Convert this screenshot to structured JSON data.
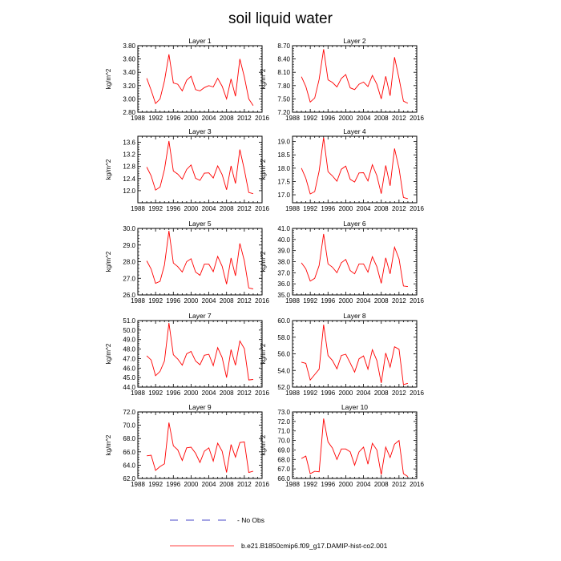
{
  "title": "soil liquid water",
  "legend": {
    "items": [
      {
        "label": "- No Obs",
        "style": "dashed",
        "color": "#4a4ac8"
      },
      {
        "label": "b.e21.B1850cmip6.f09_g17.DAMIP-hist-co2.001",
        "style": "solid",
        "color": "#ff0000"
      }
    ]
  },
  "chart_data": [
    {
      "type": "line",
      "title": "Layer 1",
      "ylabel": "kg/m^2",
      "xlim": [
        1988,
        2016
      ],
      "xticks": [
        1988,
        1992,
        1996,
        2000,
        2004,
        2008,
        2012,
        2016
      ],
      "ylim": [
        2.8,
        3.8
      ],
      "yticks": [
        "2.80",
        "3.00",
        "3.20",
        "3.40",
        "3.60",
        "3.80"
      ],
      "color": "#ff0000",
      "x": [
        1990,
        1991,
        1992,
        1993,
        1994,
        1995,
        1996,
        1997,
        1998,
        1999,
        2000,
        2001,
        2002,
        2003,
        2004,
        2005,
        2006,
        2007,
        2008,
        2009,
        2010,
        2011,
        2012,
        2013,
        2014
      ],
      "y": [
        3.31,
        3.13,
        2.93,
        3.0,
        3.27,
        3.67,
        3.24,
        3.22,
        3.12,
        3.28,
        3.34,
        3.14,
        3.12,
        3.17,
        3.2,
        3.18,
        3.31,
        3.19,
        3.0,
        3.3,
        3.04,
        3.6,
        3.33,
        3.0,
        2.9
      ]
    },
    {
      "type": "line",
      "title": "Layer 2",
      "ylabel": "kg/m^2",
      "xlim": [
        1988,
        2016
      ],
      "xticks": [
        1988,
        1992,
        1996,
        2000,
        2004,
        2008,
        2012,
        2016
      ],
      "ylim": [
        7.2,
        8.7
      ],
      "yticks": [
        "7.20",
        "7.50",
        "7.80",
        "8.10",
        "8.40",
        "8.70"
      ],
      "color": "#ff0000",
      "x": [
        1990,
        1991,
        1992,
        1993,
        1994,
        1995,
        1996,
        1997,
        1998,
        1999,
        2000,
        2001,
        2002,
        2003,
        2004,
        2005,
        2006,
        2007,
        2008,
        2009,
        2010,
        2011,
        2012,
        2013,
        2014
      ],
      "y": [
        8.0,
        7.78,
        7.43,
        7.52,
        7.94,
        8.62,
        7.93,
        7.87,
        7.77,
        7.96,
        8.05,
        7.75,
        7.71,
        7.83,
        7.88,
        7.78,
        8.03,
        7.83,
        7.5,
        8.01,
        7.57,
        8.44,
        7.96,
        7.45,
        7.4
      ]
    },
    {
      "type": "line",
      "title": "Layer 3",
      "ylabel": "kg/m^2",
      "xlim": [
        1988,
        2016
      ],
      "xticks": [
        1988,
        1992,
        1996,
        2000,
        2004,
        2008,
        2012,
        2016
      ],
      "ylim": [
        11.6,
        13.8
      ],
      "yticks": [
        "12.0",
        "12.4",
        "12.8",
        "13.2",
        "13.6"
      ],
      "color": "#ff0000",
      "x": [
        1990,
        1991,
        1992,
        1993,
        1994,
        1995,
        1996,
        1997,
        1998,
        1999,
        2000,
        2001,
        2002,
        2003,
        2004,
        2005,
        2006,
        2007,
        2008,
        2009,
        2010,
        2011,
        2012,
        2013,
        2014
      ],
      "y": [
        12.78,
        12.49,
        12.02,
        12.12,
        12.7,
        13.64,
        12.65,
        12.55,
        12.38,
        12.7,
        12.85,
        12.41,
        12.34,
        12.58,
        12.59,
        12.42,
        12.82,
        12.53,
        12.03,
        12.82,
        12.24,
        13.36,
        12.69,
        11.94,
        11.9
      ]
    },
    {
      "type": "line",
      "title": "Layer 4",
      "ylabel": "kg/m^2",
      "xlim": [
        1988,
        2016
      ],
      "xticks": [
        1988,
        1992,
        1996,
        2000,
        2004,
        2008,
        2012,
        2016
      ],
      "ylim": [
        16.7,
        19.2
      ],
      "yticks": [
        "17.0",
        "17.5",
        "18.0",
        "18.5",
        "19.0"
      ],
      "color": "#ff0000",
      "x": [
        1990,
        1991,
        1992,
        1993,
        1994,
        1995,
        1996,
        1997,
        1998,
        1999,
        2000,
        2001,
        2002,
        2003,
        2004,
        2005,
        2006,
        2007,
        2008,
        2009,
        2010,
        2011,
        2012,
        2013,
        2014
      ],
      "y": [
        18.0,
        17.62,
        17.03,
        17.12,
        17.89,
        19.15,
        17.87,
        17.71,
        17.51,
        17.96,
        18.08,
        17.58,
        17.48,
        17.82,
        17.83,
        17.52,
        18.13,
        17.72,
        17.04,
        18.1,
        17.34,
        18.74,
        17.99,
        16.9,
        16.85
      ]
    },
    {
      "type": "line",
      "title": "Layer 5",
      "ylabel": "kg/m^2",
      "xlim": [
        1988,
        2016
      ],
      "xticks": [
        1988,
        1992,
        1996,
        2000,
        2004,
        2008,
        2012,
        2016
      ],
      "ylim": [
        26.0,
        30.0
      ],
      "yticks": [
        "26.0",
        "27.0",
        "28.0",
        "29.0",
        "30.0"
      ],
      "color": "#ff0000",
      "x": [
        1990,
        1991,
        1992,
        1993,
        1994,
        1995,
        1996,
        1997,
        1998,
        1999,
        2000,
        2001,
        2002,
        2003,
        2004,
        2005,
        2006,
        2007,
        2008,
        2009,
        2010,
        2011,
        2012,
        2013,
        2014
      ],
      "y": [
        28.05,
        27.55,
        26.7,
        26.82,
        27.8,
        29.85,
        27.92,
        27.7,
        27.38,
        28.0,
        28.18,
        27.38,
        27.18,
        27.85,
        27.85,
        27.4,
        28.32,
        27.72,
        26.65,
        28.22,
        27.15,
        29.1,
        28.05,
        26.42,
        26.36
      ]
    },
    {
      "type": "line",
      "title": "Layer 6",
      "ylabel": "kg/m^2",
      "xlim": [
        1988,
        2016
      ],
      "xticks": [
        1988,
        1992,
        1996,
        2000,
        2004,
        2008,
        2012,
        2016
      ],
      "ylim": [
        35.0,
        41.0
      ],
      "yticks": [
        "35.0",
        "36.0",
        "37.0",
        "38.0",
        "39.0",
        "40.0",
        "41.0"
      ],
      "color": "#ff0000",
      "x": [
        1990,
        1991,
        1992,
        1993,
        1994,
        1995,
        1996,
        1997,
        1998,
        1999,
        2000,
        2001,
        2002,
        2003,
        2004,
        2005,
        2006,
        2007,
        2008,
        2009,
        2010,
        2011,
        2012,
        2013,
        2014
      ],
      "y": [
        37.9,
        37.35,
        36.25,
        36.5,
        37.65,
        40.5,
        37.8,
        37.5,
        37.0,
        37.9,
        38.2,
        37.2,
        36.9,
        37.8,
        37.8,
        37.05,
        38.45,
        37.55,
        36.05,
        38.35,
        36.9,
        39.3,
        38.25,
        35.8,
        35.75
      ]
    },
    {
      "type": "line",
      "title": "Layer 7",
      "ylabel": "kg/m^2",
      "xlim": [
        1988,
        2016
      ],
      "xticks": [
        1988,
        1992,
        1996,
        2000,
        2004,
        2008,
        2012,
        2016
      ],
      "ylim": [
        44.0,
        51.0
      ],
      "yticks": [
        "44.0",
        "45.0",
        "46.0",
        "47.0",
        "48.0",
        "49.0",
        "50.0",
        "51.0"
      ],
      "color": "#ff0000",
      "x": [
        1990,
        1991,
        1992,
        1993,
        1994,
        1995,
        1996,
        1997,
        1998,
        1999,
        2000,
        2001,
        2002,
        2003,
        2004,
        2005,
        2006,
        2007,
        2008,
        2009,
        2010,
        2011,
        2012,
        2013,
        2014
      ],
      "y": [
        47.3,
        46.85,
        45.2,
        45.65,
        46.75,
        50.75,
        47.4,
        46.95,
        46.3,
        47.5,
        47.75,
        46.75,
        46.35,
        47.35,
        47.45,
        46.25,
        48.15,
        47.1,
        45.0,
        47.95,
        46.3,
        48.85,
        48.05,
        44.75,
        44.8
      ]
    },
    {
      "type": "line",
      "title": "Layer 8",
      "ylabel": "kg/m^2",
      "xlim": [
        1988,
        2016
      ],
      "xticks": [
        1988,
        1992,
        1996,
        2000,
        2004,
        2008,
        2012,
        2016
      ],
      "ylim": [
        52.0,
        60.0
      ],
      "yticks": [
        "52.0",
        "54.0",
        "56.0",
        "58.0",
        "60.0"
      ],
      "color": "#ff0000",
      "x": [
        1990,
        1991,
        1992,
        1993,
        1994,
        1995,
        1996,
        1997,
        1998,
        1999,
        2000,
        2001,
        2002,
        2003,
        2004,
        2005,
        2006,
        2007,
        2008,
        2009,
        2010,
        2011,
        2012,
        2013,
        2014
      ],
      "y": [
        55.0,
        54.85,
        52.85,
        53.5,
        54.15,
        59.5,
        55.8,
        55.2,
        54.2,
        55.8,
        55.95,
        54.9,
        53.8,
        55.4,
        55.75,
        54.15,
        56.5,
        55.2,
        52.5,
        56.1,
        54.4,
        56.85,
        56.55,
        52.3,
        52.45
      ]
    },
    {
      "type": "line",
      "title": "Layer 9",
      "ylabel": "kg/m^2",
      "xlim": [
        1988,
        2016
      ],
      "xticks": [
        1988,
        1992,
        1996,
        2000,
        2004,
        2008,
        2012,
        2016
      ],
      "ylim": [
        62.0,
        72.0
      ],
      "yticks": [
        "62.0",
        "64.0",
        "66.0",
        "68.0",
        "70.0",
        "72.0"
      ],
      "color": "#ff0000",
      "x": [
        1990,
        1991,
        1992,
        1993,
        1994,
        1995,
        1996,
        1997,
        1998,
        1999,
        2000,
        2001,
        2002,
        2003,
        2004,
        2005,
        2006,
        2007,
        2008,
        2009,
        2010,
        2011,
        2012,
        2013,
        2014
      ],
      "y": [
        65.4,
        65.5,
        63.2,
        63.8,
        64.2,
        70.4,
        66.9,
        66.3,
        64.7,
        66.6,
        66.7,
        65.8,
        64.4,
        66.1,
        66.6,
        64.6,
        67.3,
        66.1,
        62.9,
        67.1,
        65.2,
        67.4,
        67.5,
        62.9,
        63.1
      ]
    },
    {
      "type": "line",
      "title": "Layer 10",
      "ylabel": "kg/m^2",
      "xlim": [
        1988,
        2016
      ],
      "xticks": [
        1988,
        1992,
        1996,
        2000,
        2004,
        2008,
        2012,
        2016
      ],
      "ylim": [
        66.0,
        73.0
      ],
      "yticks": [
        "66.0",
        "67.0",
        "68.0",
        "69.0",
        "70.0",
        "71.0",
        "72.0",
        "73.0"
      ],
      "color": "#ff0000",
      "x": [
        1990,
        1991,
        1992,
        1993,
        1994,
        1995,
        1996,
        1997,
        1998,
        1999,
        2000,
        2001,
        2002,
        2003,
        2004,
        2005,
        2006,
        2007,
        2008,
        2009,
        2010,
        2011,
        2012,
        2013,
        2014
      ],
      "y": [
        68.1,
        68.35,
        66.5,
        66.75,
        66.7,
        72.3,
        69.85,
        69.2,
        68.0,
        69.1,
        69.1,
        68.8,
        67.4,
        68.8,
        69.3,
        67.5,
        69.7,
        69.0,
        66.4,
        69.3,
        68.2,
        69.6,
        70.0,
        66.5,
        66.2
      ]
    }
  ]
}
